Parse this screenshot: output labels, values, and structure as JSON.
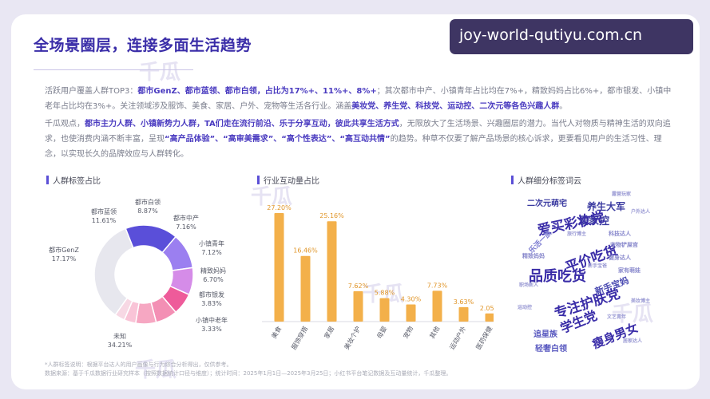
{
  "title": "全场景圈层，连接多面生活趋势",
  "watermark_text": "joy-world-qutiyu.com.cn",
  "paragraph1": {
    "t1": "活跃用户覆盖人群TOP3：",
    "t2": "都市GenZ、都市蓝领、都市白领，占比为17%+、11%+、8%+",
    "t3": "；其次都市中产、小镇青年占比均在7%+，精致妈妈占比6%+，都市银发、小镇中老年占比均在3%+。关注领域涉及服饰、美食、家居、户外、宠物等生活各行业。涵盖",
    "t4": "美妆党、养生党、科技党、运动控、二次元等各色兴趣人群",
    "t5": "。"
  },
  "paragraph2": {
    "t1": "千瓜观点，",
    "t2": "都市主力人群、小镇新势力人群，TA们走在流行前沿、乐于分享互动，彼此共享生活方式",
    "t3": "，无限放大了生活场景、兴趣圈层的潜力。当代人对物质与精神生活的双向追求，也使消费内涵不断丰富，呈现",
    "t4": "“高产品体验”、“高审美需求”、“高个性表达”、“高互动共情”",
    "t5": "的趋势。种草不仅要了解产品场景的核心诉求，更要看见用户的生活习性、理念，以实现长久的品牌效应与人群转化。"
  },
  "section_titles": {
    "donut": "人群标签占比",
    "bar": "行业互动量占比",
    "cloud": "人群细分标签词云"
  },
  "footnote": {
    "line1": "*人群标签说明：根据平台达人的用户画像与行为综合分析得出，仅供参考。",
    "line2": "数据来源：基于千瓜数据行业研究样本（按照数据统计口径与维度）；统计时间：2025年1月1日—2025年3月25日；小红书平台笔记数据及互动量统计，千瓜整理。"
  },
  "deco_text": "千瓜",
  "chart_data": [
    {
      "type": "pie",
      "variant": "donut",
      "categories": [
        "都市GenZ",
        "都市蓝领",
        "都市白领",
        "都市中产",
        "小镇青年",
        "精致妈妈",
        "都市银发",
        "小镇中老年",
        "未知"
      ],
      "values": [
        17.17,
        11.61,
        8.87,
        7.16,
        7.12,
        6.7,
        3.83,
        3.33,
        34.21
      ],
      "labels": [
        "17.17%",
        "11.61%",
        "8.87%",
        "7.16%",
        "7.12%",
        "6.70%",
        "3.83%",
        "3.33%",
        "34.21%"
      ],
      "colors": [
        "#5a4fd9",
        "#9b7ff0",
        "#d58ce8",
        "#ee5b9a",
        "#f38fb4",
        "#f6a7c2",
        "#f9c4d7",
        "#f7d8e4",
        "#e7e7ee"
      ]
    },
    {
      "type": "bar",
      "categories": [
        "美食",
        "服饰穿搭",
        "家居",
        "美妆个护",
        "母婴",
        "宠物",
        "其他",
        "运动户外",
        "医药保健"
      ],
      "values": [
        27.2,
        16.46,
        25.16,
        7.62,
        5.88,
        4.3,
        7.73,
        3.63,
        2.05
      ],
      "labels": [
        "27.20%",
        "16.46%",
        "25.16%",
        "7.62%",
        "5.88%",
        "4.30%",
        "7.73%",
        "3.63%",
        "2.05%"
      ],
      "ylim": [
        0,
        30
      ],
      "color": "#f3b04a"
    }
  ],
  "word_cloud": [
    {
      "text": "二次元萌宅",
      "color": "#3a3aa0",
      "size": 10
    },
    {
      "text": "养生大军",
      "color": "#3a3aa0",
      "size": 12
    },
    {
      "text": "爱家控",
      "color": "#3a3aa0",
      "size": 13
    },
    {
      "text": "爱买彩妆党",
      "color": "#3a2da8",
      "size": 17
    },
    {
      "text": "平价吃货",
      "color": "#3a2da8",
      "size": 17
    },
    {
      "text": "品质吃货",
      "color": "#3a2da8",
      "size": 18
    },
    {
      "text": "专注护肤党",
      "color": "#3a2da8",
      "size": 17
    },
    {
      "text": "新手宝妈",
      "color": "#4b4bb2",
      "size": 11
    },
    {
      "text": "学生党",
      "color": "#3a2da8",
      "size": 16
    },
    {
      "text": "瘦身男女",
      "color": "#3a2da8",
      "size": 15
    },
    {
      "text": "追星族",
      "color": "#5a5ac0",
      "size": 10
    },
    {
      "text": "轻奢白领",
      "color": "#5a5ac0",
      "size": 10
    },
    {
      "text": "乐活一族",
      "color": "#7a7ad0",
      "size": 9
    },
    {
      "text": "科技达人",
      "color": "#8888cc",
      "size": 7
    },
    {
      "text": "宠物铲屎官",
      "color": "#8888cc",
      "size": 7
    },
    {
      "text": "健身达人",
      "color": "#8888cc",
      "size": 7
    },
    {
      "text": "家有萌娃",
      "color": "#8888cc",
      "size": 7
    },
    {
      "text": "精致妈妈",
      "color": "#8888cc",
      "size": 7
    },
    {
      "text": "露营玩家",
      "color": "#9a9ad4",
      "size": 6
    },
    {
      "text": "户外达人",
      "color": "#9a9ad4",
      "size": 6
    },
    {
      "text": "旅行博主",
      "color": "#9a9ad4",
      "size": 6
    },
    {
      "text": "职场新人",
      "color": "#9a9ad4",
      "size": 6
    },
    {
      "text": "新手宝爸",
      "color": "#9a9ad4",
      "size": 6
    },
    {
      "text": "美妆博主",
      "color": "#9a9ad4",
      "size": 6
    },
    {
      "text": "运动控",
      "color": "#9a9ad4",
      "size": 6
    },
    {
      "text": "文艺青年",
      "color": "#9a9ad4",
      "size": 6
    },
    {
      "text": "居家达人",
      "color": "#9a9ad4",
      "size": 6
    }
  ]
}
